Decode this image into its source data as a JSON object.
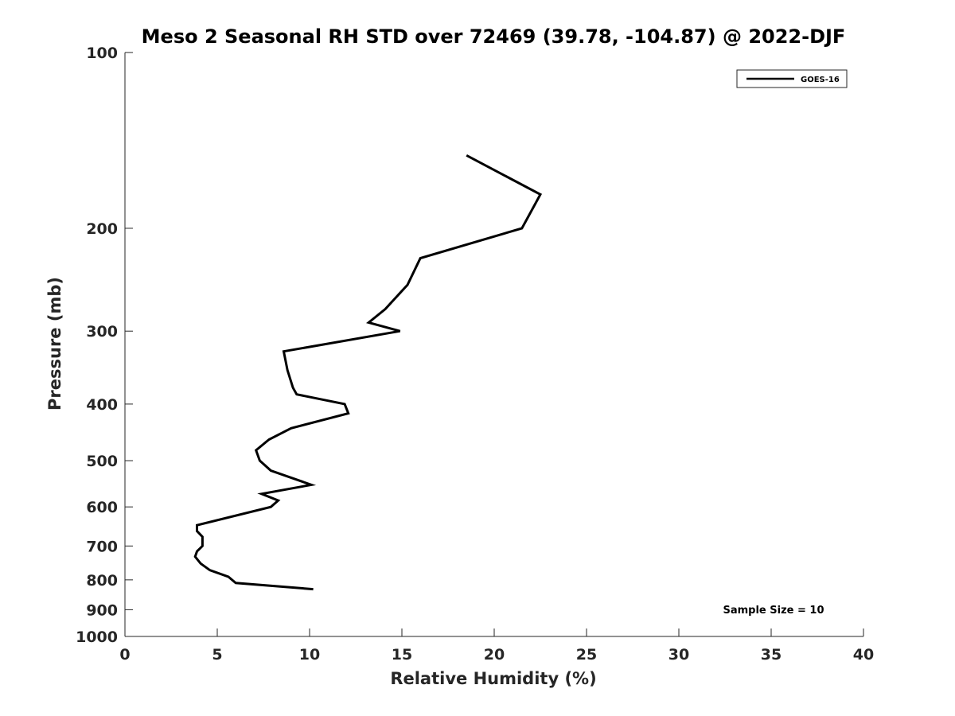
{
  "chart_data": {
    "type": "line",
    "title": "Meso 2 Seasonal RH STD over 72469 (39.78, -104.87) @ 2022-DJF",
    "xlabel": "Relative Humidity (%)",
    "ylabel": "Pressure (mb)",
    "xlim": [
      0,
      40
    ],
    "ylim": [
      100,
      1000
    ],
    "yscale": "log",
    "yreversed": true,
    "x_ticks": [
      0,
      5,
      10,
      15,
      20,
      25,
      30,
      35,
      40
    ],
    "y_ticks": [
      100,
      200,
      300,
      400,
      500,
      600,
      700,
      800,
      900,
      1000
    ],
    "grid": false,
    "legend_position": "top-right",
    "annotation": "Sample Size = 10",
    "series": [
      {
        "name": "GOES-16",
        "color": "#000000",
        "points": [
          {
            "x": 18.5,
            "y": 150
          },
          {
            "x": 22.5,
            "y": 175
          },
          {
            "x": 21.5,
            "y": 200
          },
          {
            "x": 16.0,
            "y": 225
          },
          {
            "x": 15.3,
            "y": 250
          },
          {
            "x": 14.1,
            "y": 275
          },
          {
            "x": 13.2,
            "y": 290
          },
          {
            "x": 14.9,
            "y": 300
          },
          {
            "x": 8.6,
            "y": 325
          },
          {
            "x": 8.8,
            "y": 350
          },
          {
            "x": 9.1,
            "y": 375
          },
          {
            "x": 9.3,
            "y": 385
          },
          {
            "x": 11.9,
            "y": 400
          },
          {
            "x": 12.1,
            "y": 415
          },
          {
            "x": 9.0,
            "y": 440
          },
          {
            "x": 7.8,
            "y": 460
          },
          {
            "x": 7.1,
            "y": 480
          },
          {
            "x": 7.3,
            "y": 500
          },
          {
            "x": 7.9,
            "y": 520
          },
          {
            "x": 10.1,
            "y": 550
          },
          {
            "x": 7.4,
            "y": 570
          },
          {
            "x": 8.3,
            "y": 585
          },
          {
            "x": 7.9,
            "y": 600
          },
          {
            "x": 3.9,
            "y": 645
          },
          {
            "x": 3.9,
            "y": 660
          },
          {
            "x": 4.2,
            "y": 675
          },
          {
            "x": 4.2,
            "y": 700
          },
          {
            "x": 3.9,
            "y": 715
          },
          {
            "x": 3.8,
            "y": 730
          },
          {
            "x": 4.1,
            "y": 750
          },
          {
            "x": 4.6,
            "y": 770
          },
          {
            "x": 5.6,
            "y": 790
          },
          {
            "x": 6.0,
            "y": 810
          },
          {
            "x": 10.2,
            "y": 830
          }
        ]
      }
    ]
  }
}
